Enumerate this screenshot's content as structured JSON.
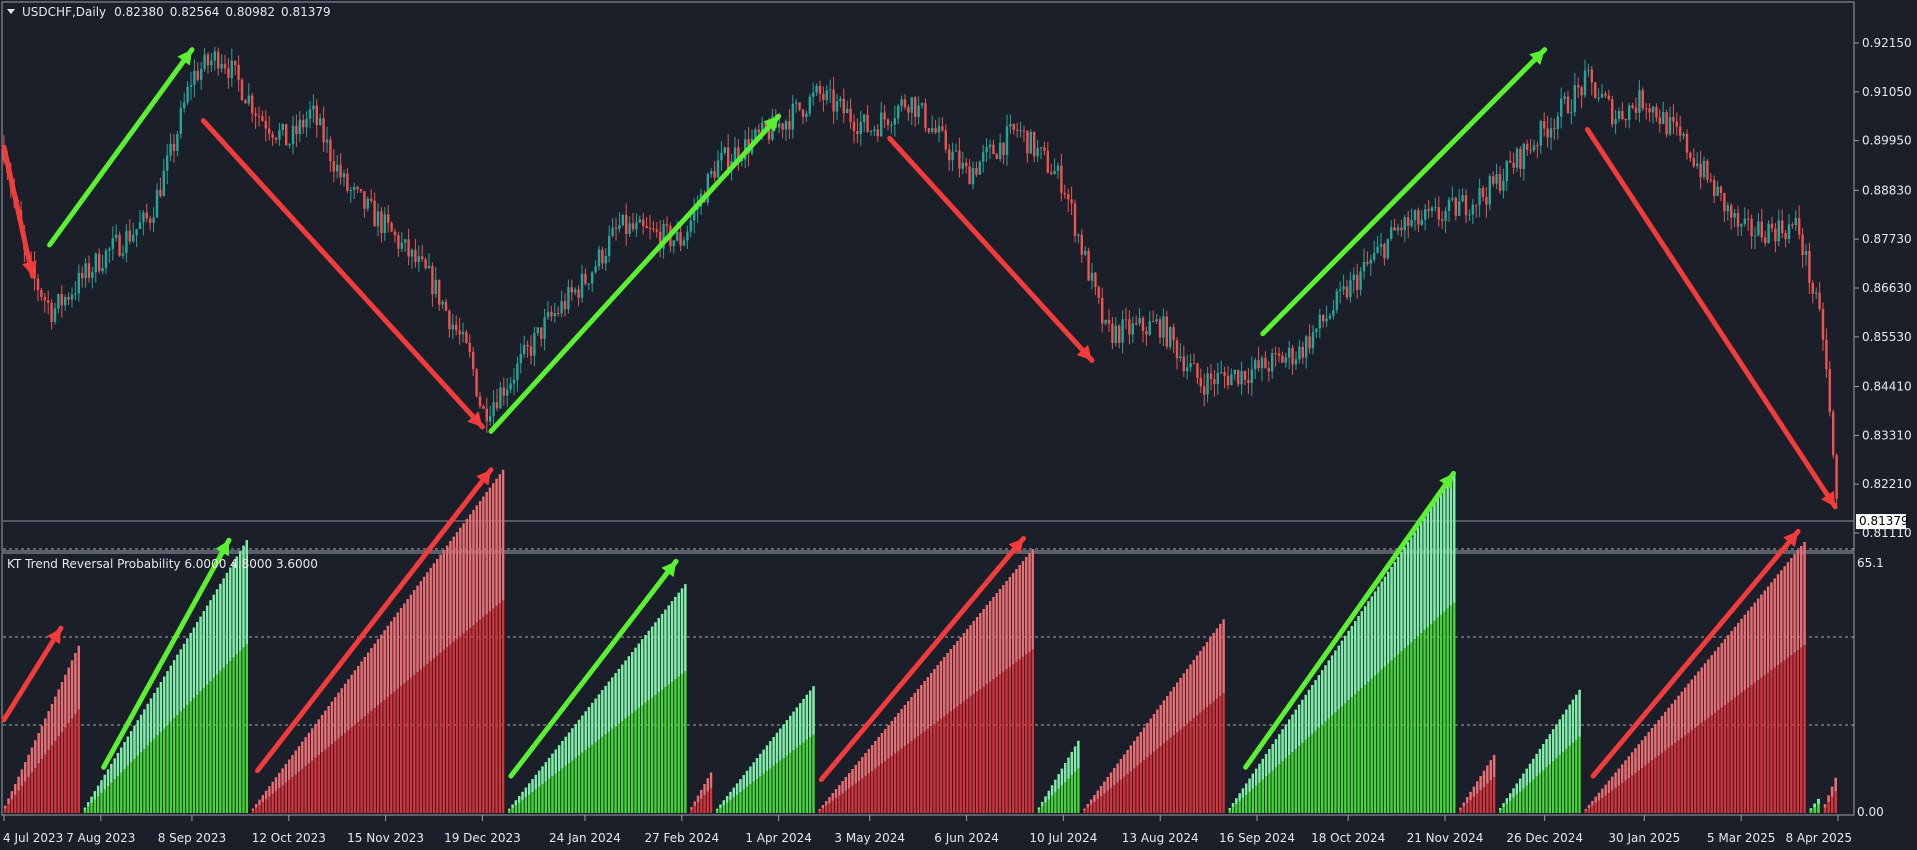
{
  "chart_data": [
    {
      "type": "candlestick",
      "title": "USDCHF,Daily",
      "ohlc_readout": [
        "0.82380",
        "0.82564",
        "0.80982",
        "0.81379"
      ],
      "y_ticks": [
        "0.92150",
        "0.91050",
        "0.89950",
        "0.88830",
        "0.87730",
        "0.86630",
        "0.85530",
        "0.84410",
        "0.83310",
        "0.82210",
        "0.81110"
      ],
      "current_price": "0.81379",
      "x_ticks": [
        "4 Jul 2023",
        "7 Aug 2023",
        "8 Sep 2023",
        "12 Oct 2023",
        "15 Nov 2023",
        "19 Dec 2023",
        "24 Jan 2024",
        "27 Feb 2024",
        "1 Apr 2024",
        "3 May 2024",
        "6 Jun 2024",
        "10 Jul 2024",
        "13 Aug 2024",
        "16 Sep 2024",
        "18 Oct 2024",
        "21 Nov 2024",
        "26 Dec 2024",
        "30 Jan 2025",
        "5 Mar 2025",
        "8 Apr 2025"
      ],
      "close_path": [
        {
          "date": "4 Jul 2023",
          "close": 0.898
        },
        {
          "date": "12 Jul 2023",
          "close": 0.871
        },
        {
          "date": "21 Jul 2023",
          "close": 0.861
        },
        {
          "date": "7 Aug 2023",
          "close": 0.873
        },
        {
          "date": "24 Aug 2023",
          "close": 0.882
        },
        {
          "date": "1 Sep 2023",
          "close": 0.897
        },
        {
          "date": "8 Sep 2023",
          "close": 0.914
        },
        {
          "date": "18 Sep 2023",
          "close": 0.919
        },
        {
          "date": "2 Oct 2023",
          "close": 0.905
        },
        {
          "date": "12 Oct 2023",
          "close": 0.899
        },
        {
          "date": "20 Oct 2023",
          "close": 0.906
        },
        {
          "date": "1 Nov 2023",
          "close": 0.889
        },
        {
          "date": "15 Nov 2023",
          "close": 0.88
        },
        {
          "date": "1 Dec 2023",
          "close": 0.868
        },
        {
          "date": "15 Dec 2023",
          "close": 0.85
        },
        {
          "date": "19 Dec 2023",
          "close": 0.838
        },
        {
          "date": "29 Dec 2023",
          "close": 0.846
        },
        {
          "date": "10 Jan 2024",
          "close": 0.858
        },
        {
          "date": "24 Jan 2024",
          "close": 0.868
        },
        {
          "date": "5 Feb 2024",
          "close": 0.88
        },
        {
          "date": "27 Feb 2024",
          "close": 0.877
        },
        {
          "date": "10 Mar 2024",
          "close": 0.894
        },
        {
          "date": "1 Apr 2024",
          "close": 0.903
        },
        {
          "date": "15 Apr 2024",
          "close": 0.91
        },
        {
          "date": "3 May 2024",
          "close": 0.902
        },
        {
          "date": "17 May 2024",
          "close": 0.909
        },
        {
          "date": "6 Jun 2024",
          "close": 0.892
        },
        {
          "date": "24 Jun 2024",
          "close": 0.902
        },
        {
          "date": "10 Jul 2024",
          "close": 0.89
        },
        {
          "date": "25 Jul 2024",
          "close": 0.856
        },
        {
          "date": "13 Aug 2024",
          "close": 0.858
        },
        {
          "date": "27 Aug 2024",
          "close": 0.845
        },
        {
          "date": "16 Sep 2024",
          "close": 0.848
        },
        {
          "date": "1 Oct 2024",
          "close": 0.852
        },
        {
          "date": "18 Oct 2024",
          "close": 0.866
        },
        {
          "date": "5 Nov 2024",
          "close": 0.88
        },
        {
          "date": "21 Nov 2024",
          "close": 0.883
        },
        {
          "date": "6 Dec 2024",
          "close": 0.888
        },
        {
          "date": "26 Dec 2024",
          "close": 0.902
        },
        {
          "date": "10 Jan 2025",
          "close": 0.913
        },
        {
          "date": "20 Jan 2025",
          "close": 0.905
        },
        {
          "date": "30 Jan 2025",
          "close": 0.909
        },
        {
          "date": "14 Feb 2025",
          "close": 0.898
        },
        {
          "date": "5 Mar 2025",
          "close": 0.879
        },
        {
          "date": "25 Mar 2025",
          "close": 0.88
        },
        {
          "date": "3 Apr 2025",
          "close": 0.855
        },
        {
          "date": "8 Apr 2025",
          "close": 0.8138
        }
      ],
      "arrows": [
        {
          "dir": "down",
          "color": "#f23b3b",
          "from": {
            "date": "4 Jul 2023",
            "price": 0.898
          },
          "to": {
            "date": "14 Jul 2023",
            "price": 0.869
          }
        },
        {
          "dir": "up",
          "color": "#5cf032",
          "from": {
            "date": "20 Jul 2023",
            "price": 0.876
          },
          "to": {
            "date": "8 Sep 2023",
            "price": 0.92
          }
        },
        {
          "dir": "down",
          "color": "#f23b3b",
          "from": {
            "date": "12 Sep 2023",
            "price": 0.904
          },
          "to": {
            "date": "19 Dec 2023",
            "price": 0.835
          }
        },
        {
          "dir": "up",
          "color": "#5cf032",
          "from": {
            "date": "22 Dec 2023",
            "price": 0.834
          },
          "to": {
            "date": "1 Apr 2024",
            "price": 0.905
          }
        },
        {
          "dir": "down",
          "color": "#f23b3b",
          "from": {
            "date": "10 May 2024",
            "price": 0.9
          },
          "to": {
            "date": "20 Jul 2024",
            "price": 0.85
          }
        },
        {
          "dir": "up",
          "color": "#5cf032",
          "from": {
            "date": "18 Sep 2024",
            "price": 0.856
          },
          "to": {
            "date": "26 Dec 2024",
            "price": 0.92
          }
        },
        {
          "dir": "down",
          "color": "#f23b3b",
          "from": {
            "date": "10 Jan 2025",
            "price": 0.902
          },
          "to": {
            "date": "7 Apr 2025",
            "price": 0.817
          }
        }
      ]
    },
    {
      "type": "histogram",
      "title": "KT Trend Reversal Probability 6.0000 4.8000 3.6000",
      "y_labels": [
        "65.1",
        "0.00"
      ],
      "level_lines": [
        15,
        10,
        5
      ],
      "segments": [
        {
          "start": "4 Jul 2023",
          "end": "31 Jul 2023",
          "color": "red",
          "peak": 9.5
        },
        {
          "start": "1 Aug 2023",
          "end": "28 Sep 2023",
          "color": "green",
          "peak": 15.5
        },
        {
          "start": "29 Sep 2023",
          "end": "27 Dec 2023",
          "color": "red",
          "peak": 19.5
        },
        {
          "start": "28 Dec 2023",
          "end": "29 Feb 2024",
          "color": "green",
          "peak": 13.0
        },
        {
          "start": "1 Mar 2024",
          "end": "9 Mar 2024",
          "color": "red",
          "peak": 2.3
        },
        {
          "start": "10 Mar 2024",
          "end": "14 Apr 2024",
          "color": "green",
          "peak": 7.2
        },
        {
          "start": "15 Apr 2024",
          "end": "30 Jun 2024",
          "color": "red",
          "peak": 15.0
        },
        {
          "start": "1 Jul 2024",
          "end": "16 Jul 2024",
          "color": "green",
          "peak": 4.1
        },
        {
          "start": "17 Jul 2024",
          "end": "5 Sep 2024",
          "color": "red",
          "peak": 11.0
        },
        {
          "start": "6 Sep 2024",
          "end": "25 Nov 2024",
          "color": "green",
          "peak": 19.3
        },
        {
          "start": "26 Nov 2024",
          "end": "9 Dec 2024",
          "color": "red",
          "peak": 3.3
        },
        {
          "start": "10 Dec 2024",
          "end": "8 Jan 2025",
          "color": "green",
          "peak": 7.0
        },
        {
          "start": "9 Jan 2025",
          "end": "28 Mar 2025",
          "color": "red",
          "peak": 15.4
        },
        {
          "start": "29 Mar 2025",
          "end": "2 Apr 2025",
          "color": "green",
          "peak": 0.8
        },
        {
          "start": "3 Apr 2025",
          "end": "8 Apr 2025",
          "color": "red",
          "peak": 2.0
        }
      ],
      "arrows": [
        {
          "color": "#f23b3b",
          "from": {
            "date": "4 Jul 2023",
            "value": 5.3
          },
          "to": {
            "date": "24 Jul 2023",
            "value": 10.5
          }
        },
        {
          "color": "#5cf032",
          "from": {
            "date": "8 Aug 2023",
            "value": 2.6
          },
          "to": {
            "date": "21 Sep 2023",
            "value": 15.5
          }
        },
        {
          "color": "#f23b3b",
          "from": {
            "date": "1 Oct 2023",
            "value": 2.4
          },
          "to": {
            "date": "22 Dec 2023",
            "value": 19.5
          }
        },
        {
          "color": "#5cf032",
          "from": {
            "date": "29 Dec 2023",
            "value": 2.1
          },
          "to": {
            "date": "25 Feb 2024",
            "value": 14.3
          }
        },
        {
          "color": "#f23b3b",
          "from": {
            "date": "16 Apr 2024",
            "value": 1.9
          },
          "to": {
            "date": "26 Jun 2024",
            "value": 15.6
          }
        },
        {
          "color": "#5cf032",
          "from": {
            "date": "12 Sep 2024",
            "value": 2.6
          },
          "to": {
            "date": "24 Nov 2024",
            "value": 19.3
          }
        },
        {
          "color": "#f23b3b",
          "from": {
            "date": "12 Jan 2025",
            "value": 2.1
          },
          "to": {
            "date": "25 Mar 2025",
            "value": 16.0
          }
        }
      ]
    }
  ]
}
